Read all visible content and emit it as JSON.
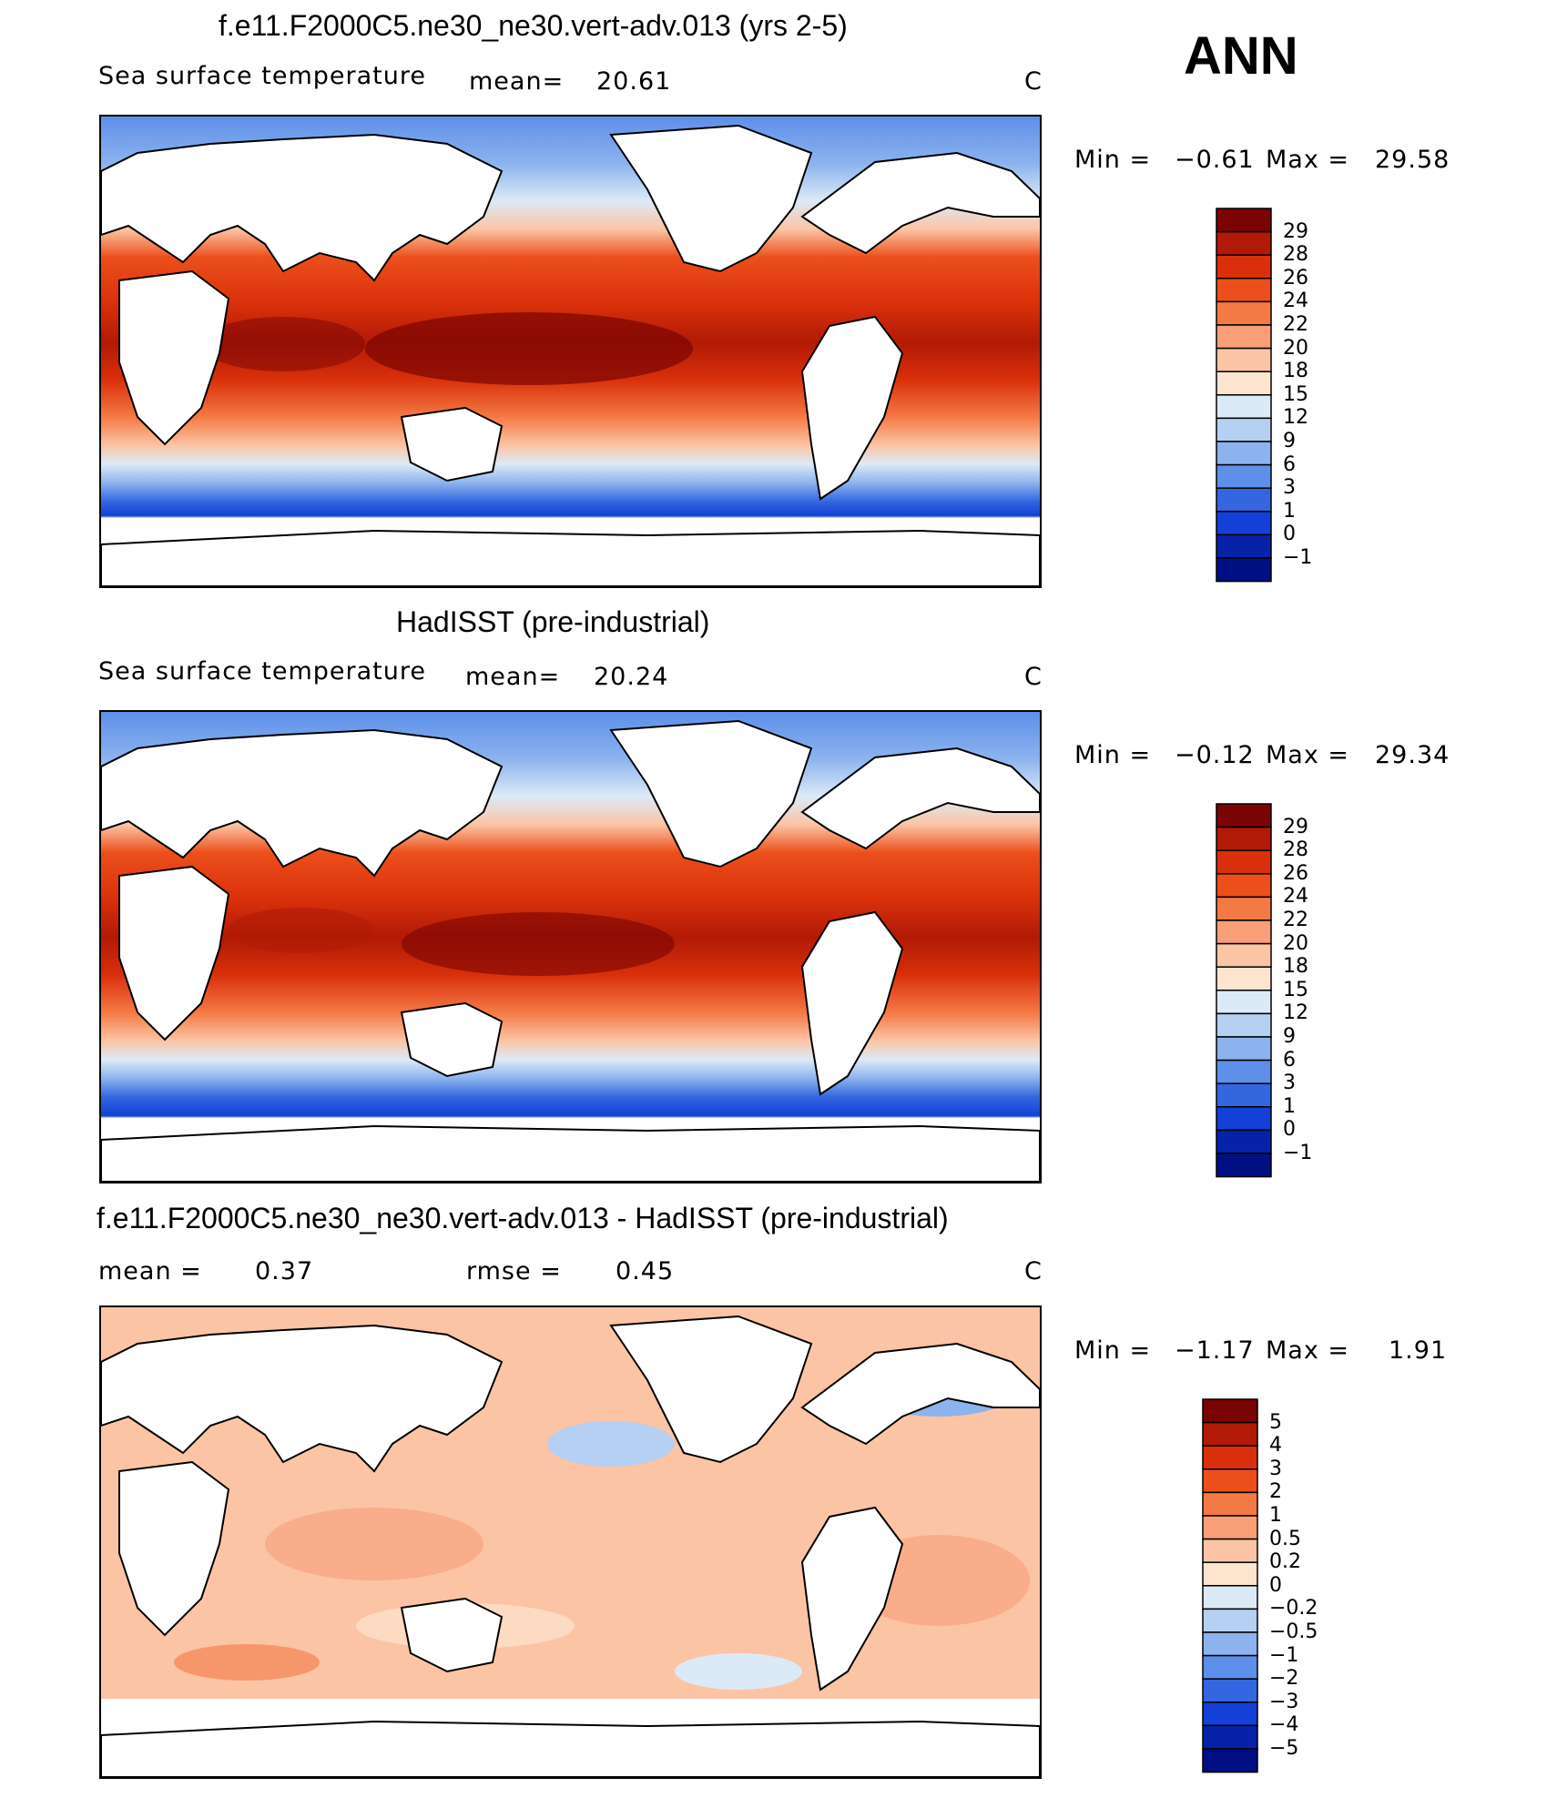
{
  "season": "ANN",
  "panels": [
    {
      "title": "f.e11.F2000C5.ne30_ne30.vert-adv.013 (yrs 2-5)",
      "variable": "Sea surface temperature",
      "stat1_label": "mean=",
      "stat1_value": "20.61",
      "stat2_label": "",
      "stat2_value": "",
      "units": "C",
      "min_label": "Min =",
      "min_value": "−0.61",
      "max_label": "Max =",
      "max_value": "29.58",
      "levels": [
        "29",
        "28",
        "26",
        "24",
        "22",
        "20",
        "18",
        "15",
        "12",
        "9",
        "6",
        "3",
        "1",
        "0",
        "−1"
      ],
      "colors": [
        "#7a0403",
        "#b11a06",
        "#d9300b",
        "#ec4f1c",
        "#f47a45",
        "#f89f78",
        "#fbc4a5",
        "#fde4cf",
        "#dceaf7",
        "#b5d0f2",
        "#8cb3ee",
        "#5e8fe9",
        "#3366df",
        "#1340d6",
        "#0522a8",
        "#000f82"
      ]
    },
    {
      "title": "HadISST (pre-industrial)",
      "variable": "Sea surface temperature",
      "stat1_label": "mean=",
      "stat1_value": "20.24",
      "stat2_label": "",
      "stat2_value": "",
      "units": "C",
      "min_label": "Min =",
      "min_value": "−0.12",
      "max_label": "Max =",
      "max_value": "29.34",
      "levels": [
        "29",
        "28",
        "26",
        "24",
        "22",
        "20",
        "18",
        "15",
        "12",
        "9",
        "6",
        "3",
        "1",
        "0",
        "−1"
      ],
      "colors": [
        "#7a0403",
        "#b11a06",
        "#d9300b",
        "#ec4f1c",
        "#f47a45",
        "#f89f78",
        "#fbc4a5",
        "#fde4cf",
        "#dceaf7",
        "#b5d0f2",
        "#8cb3ee",
        "#5e8fe9",
        "#3366df",
        "#1340d6",
        "#0522a8",
        "#000f82"
      ]
    },
    {
      "title": "f.e11.F2000C5.ne30_ne30.vert-adv.013 - HadISST (pre-industrial)",
      "variable": "",
      "stat1_label": "mean =",
      "stat1_value": "0.37",
      "stat2_label": "rmse =",
      "stat2_value": "0.45",
      "units": "C",
      "min_label": "Min =",
      "min_value": "−1.17",
      "max_label": "Max =",
      "max_value": "1.91",
      "levels": [
        "5",
        "4",
        "3",
        "2",
        "1",
        "0.5",
        "0.2",
        "0",
        "−0.2",
        "−0.5",
        "−1",
        "−2",
        "−3",
        "−4",
        "−5"
      ],
      "colors": [
        "#7a0403",
        "#b11a06",
        "#d9300b",
        "#ec4f1c",
        "#f47a45",
        "#f89f78",
        "#fbc4a5",
        "#fde4cf",
        "#dceaf7",
        "#b5d0f2",
        "#8cb3ee",
        "#5e8fe9",
        "#3366df",
        "#1340d6",
        "#0522a8",
        "#000f82"
      ]
    }
  ]
}
